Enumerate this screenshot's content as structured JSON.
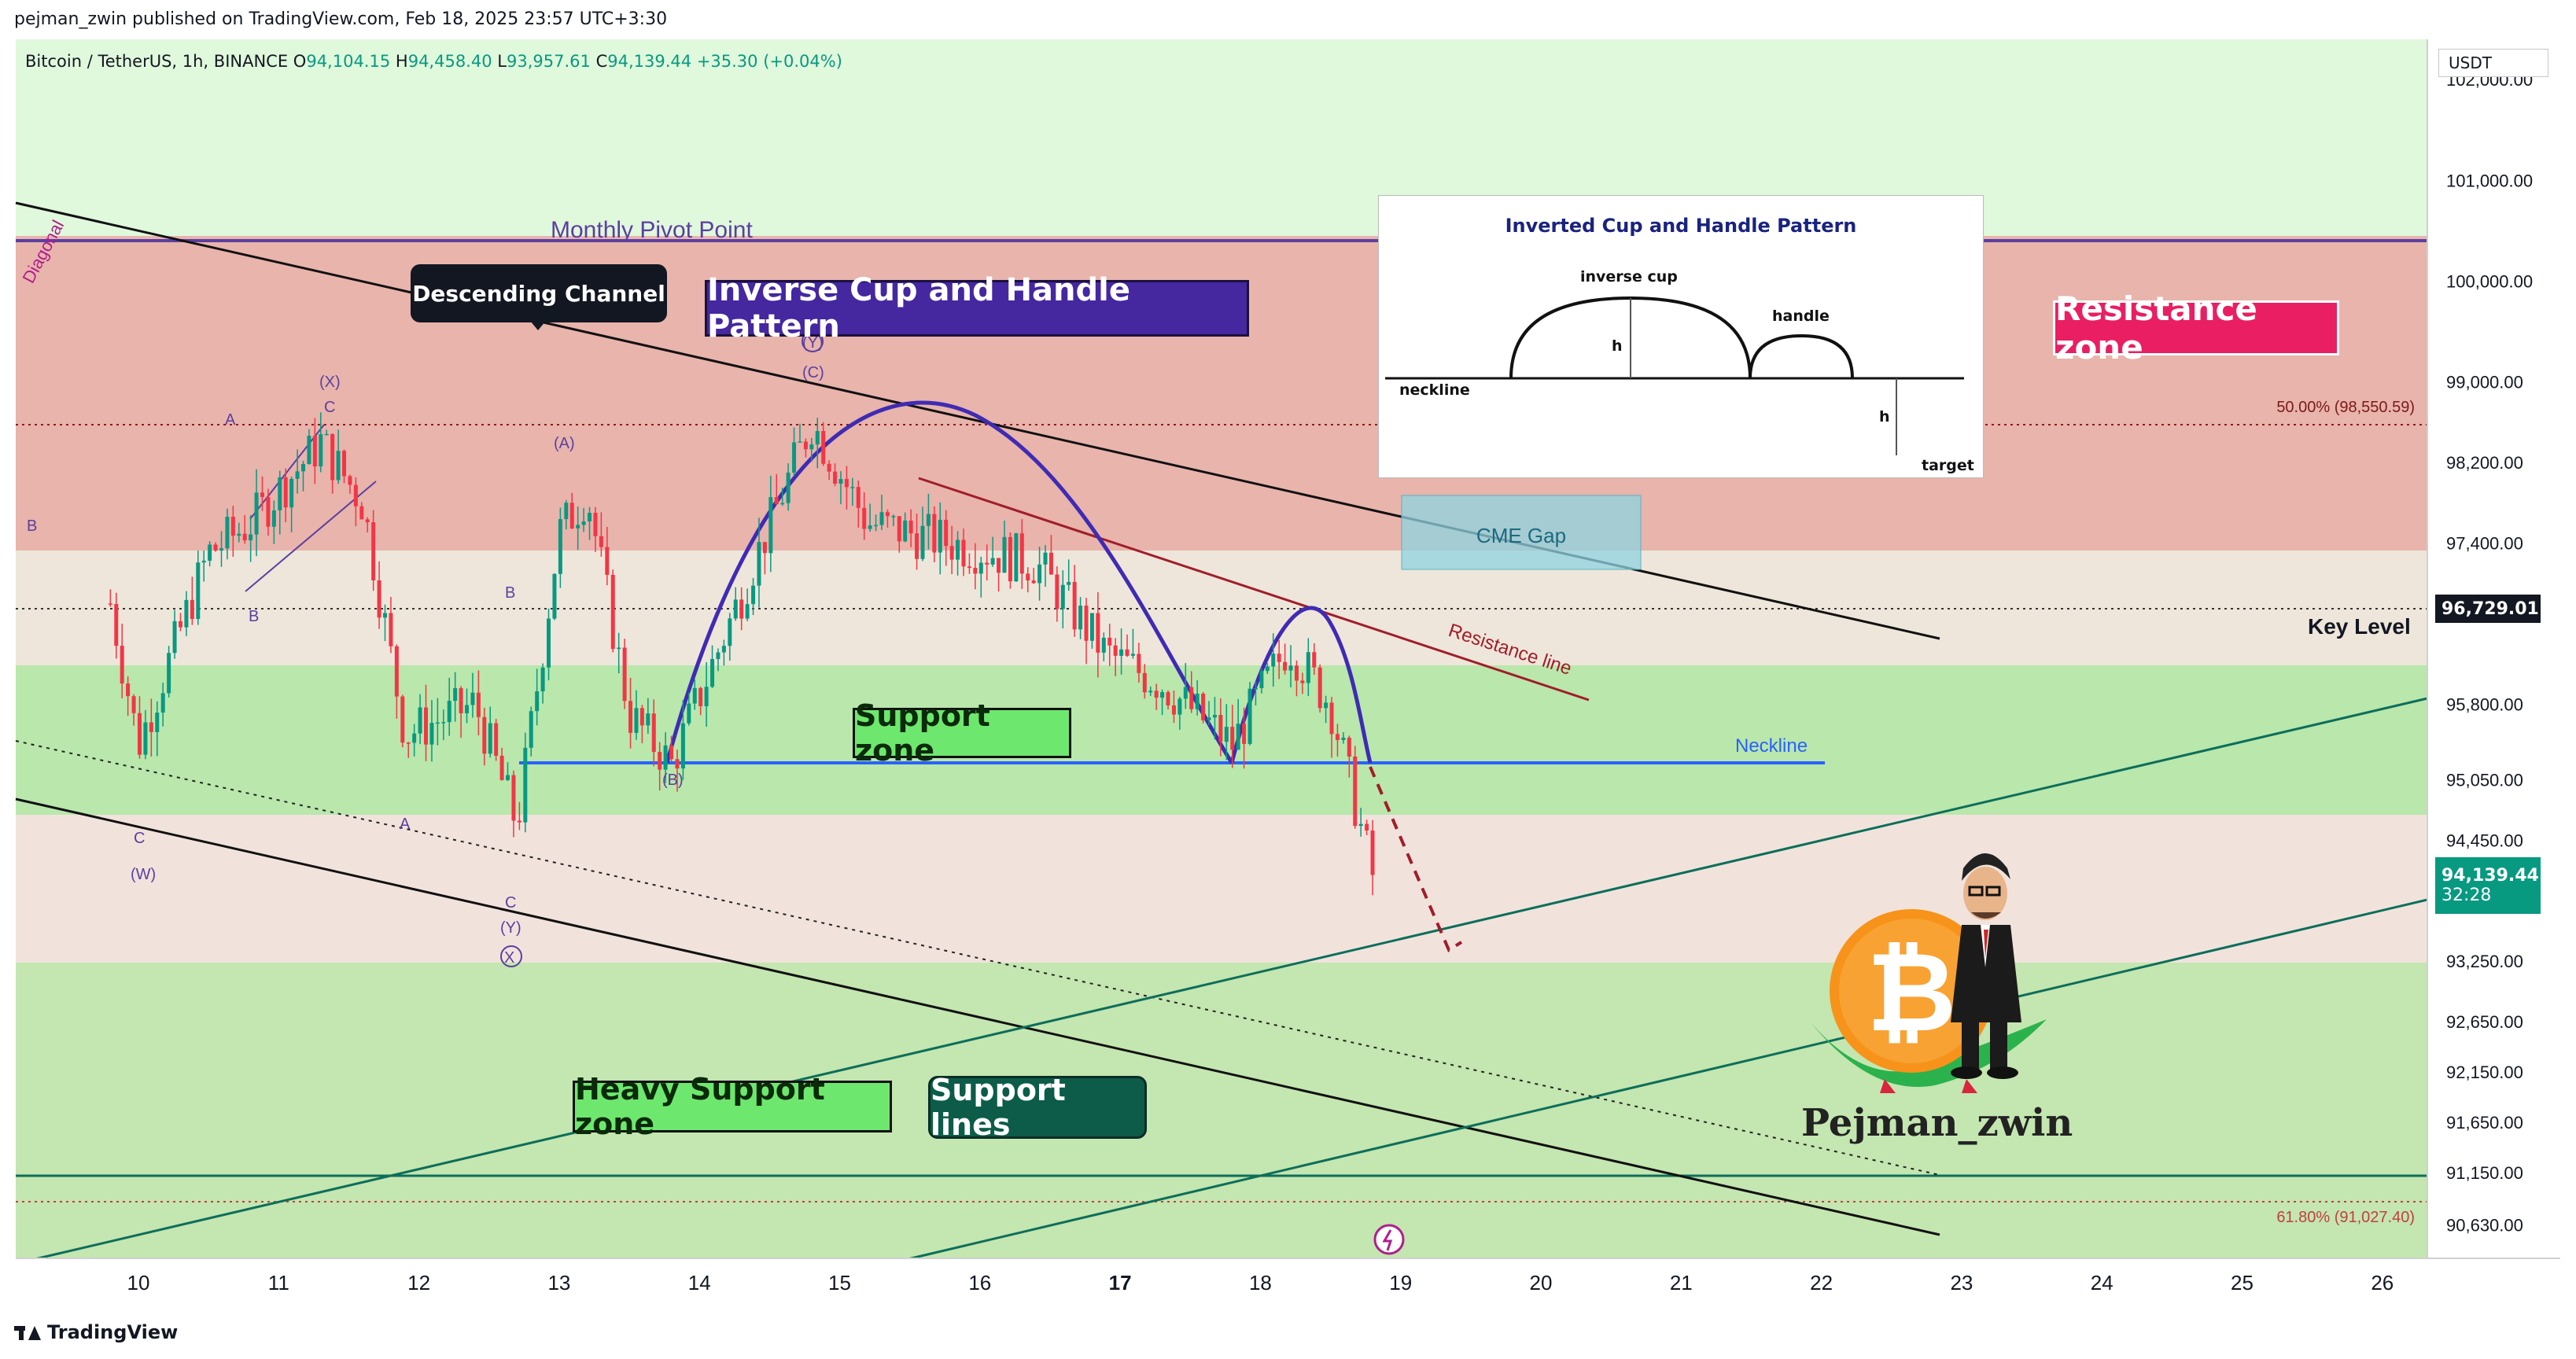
{
  "credit": "pejman_zwin published on TradingView.com, Feb 18, 2025 23:57 UTC+3:30",
  "legend": {
    "symbol": "Bitcoin / TetherUS, 1h, BINANCE",
    "open_label": "O",
    "open": "94,104.15",
    "high_label": "H",
    "high": "94,458.40",
    "low_label": "L",
    "low": "93,957.61",
    "close_label": "C",
    "close": "94,139.44",
    "change": "+35.30 (+0.04%)"
  },
  "currency": "USDT",
  "footer_brand": "TradingView",
  "labels": {
    "descending_channel": "Descending Channel",
    "inverse_cup": "Inverse Cup and Handle Pattern",
    "support_zone": "Support zone",
    "heavy_support": "Heavy Support zone",
    "support_lines": "Support lines",
    "resistance_zone": "Resistance zone",
    "monthly_pivot": "Monthly Pivot Point",
    "diagonal": "Diagonal",
    "cme_gap": "CME Gap",
    "resistance_line": "Resistance line",
    "neckline": "Neckline",
    "key_level": "Key Level"
  },
  "inset": {
    "title": "Inverted Cup and Handle  Pattern",
    "inverse_cup": "inverse cup",
    "handle": "handle",
    "neckline": "neckline",
    "h1": "h",
    "h2": "h",
    "target": "target"
  },
  "watermark": "Pejman_zwin",
  "colors": {
    "up": "#089981",
    "down": "#f23645",
    "resistance_zone": "#e8b4ac",
    "support_zone": "#b9e7ac",
    "heavy_support": "#c4e6b0",
    "top_band": "#e0f8dc",
    "pattern_line": "#3f2bb3",
    "neckline": "#2962ff",
    "resistance_line": "#a11d2a",
    "support_lines": "#0d6e5a"
  },
  "chart_data": {
    "type": "candlestick",
    "symbol": "BTCUSDT",
    "timeframe": "1h",
    "ylim": [
      90300,
      102400
    ],
    "y_ticks": [
      90630,
      91150,
      91650,
      92150,
      92650,
      93250,
      94450,
      95050,
      95800,
      97400,
      98200,
      99000,
      100000,
      101000,
      102000
    ],
    "y_tick_labels": [
      "90,630.00",
      "91,150.00",
      "91,650.00",
      "92,150.00",
      "92,650.00",
      "93,250.00",
      "94,450.00",
      "95,050.00",
      "95,800.00",
      "97,400.00",
      "98,200.00",
      "99,000.00",
      "100,000.00",
      "101,000.00",
      "102,000.00"
    ],
    "x_ticks": [
      "10",
      "11",
      "12",
      "13",
      "14",
      "15",
      "16",
      "17",
      "18",
      "19",
      "20",
      "21",
      "22",
      "23",
      "24",
      "25",
      "26"
    ],
    "current_price": "94,139.44",
    "countdown": "32:28",
    "key_level": "96,729.01",
    "fib_50": "50.00% (98,550.59)",
    "fib_618": "61.80% (91,027.40)",
    "zones": [
      {
        "name": "Resistance zone",
        "from": 97300,
        "to": 100400
      },
      {
        "name": "Support zone",
        "from": 94700,
        "to": 96200
      },
      {
        "name": "Heavy Support zone",
        "from": 90450,
        "to": 93250
      }
    ],
    "monthly_pivot": 100400,
    "neckline": 95200,
    "closes_approx": [
      {
        "day": 9.8,
        "price": 96800
      },
      {
        "day": 10.0,
        "price": 95400
      },
      {
        "day": 10.5,
        "price": 97300
      },
      {
        "day": 10.8,
        "price": 97600
      },
      {
        "day": 11.3,
        "price": 98400
      },
      {
        "day": 11.6,
        "price": 97800
      },
      {
        "day": 11.9,
        "price": 95500
      },
      {
        "day": 12.4,
        "price": 95800
      },
      {
        "day": 12.7,
        "price": 94600
      },
      {
        "day": 13.0,
        "price": 97500
      },
      {
        "day": 13.2,
        "price": 97900
      },
      {
        "day": 13.5,
        "price": 95700
      },
      {
        "day": 13.8,
        "price": 95200
      },
      {
        "day": 14.3,
        "price": 96900
      },
      {
        "day": 14.8,
        "price": 98600
      },
      {
        "day": 15.2,
        "price": 97600
      },
      {
        "day": 15.8,
        "price": 97400
      },
      {
        "day": 16.4,
        "price": 97200
      },
      {
        "day": 16.9,
        "price": 96300
      },
      {
        "day": 17.3,
        "price": 96000
      },
      {
        "day": 17.8,
        "price": 95400
      },
      {
        "day": 18.2,
        "price": 96400
      },
      {
        "day": 18.5,
        "price": 95800
      },
      {
        "day": 18.8,
        "price": 94100
      }
    ],
    "wave_labels": [
      "B",
      "A",
      "(X)",
      "C",
      "B",
      "(W)",
      "C",
      "A",
      "(A)",
      "B",
      "C",
      "(Y)",
      "X",
      "(B)",
      "(Y)",
      "(C)"
    ]
  }
}
